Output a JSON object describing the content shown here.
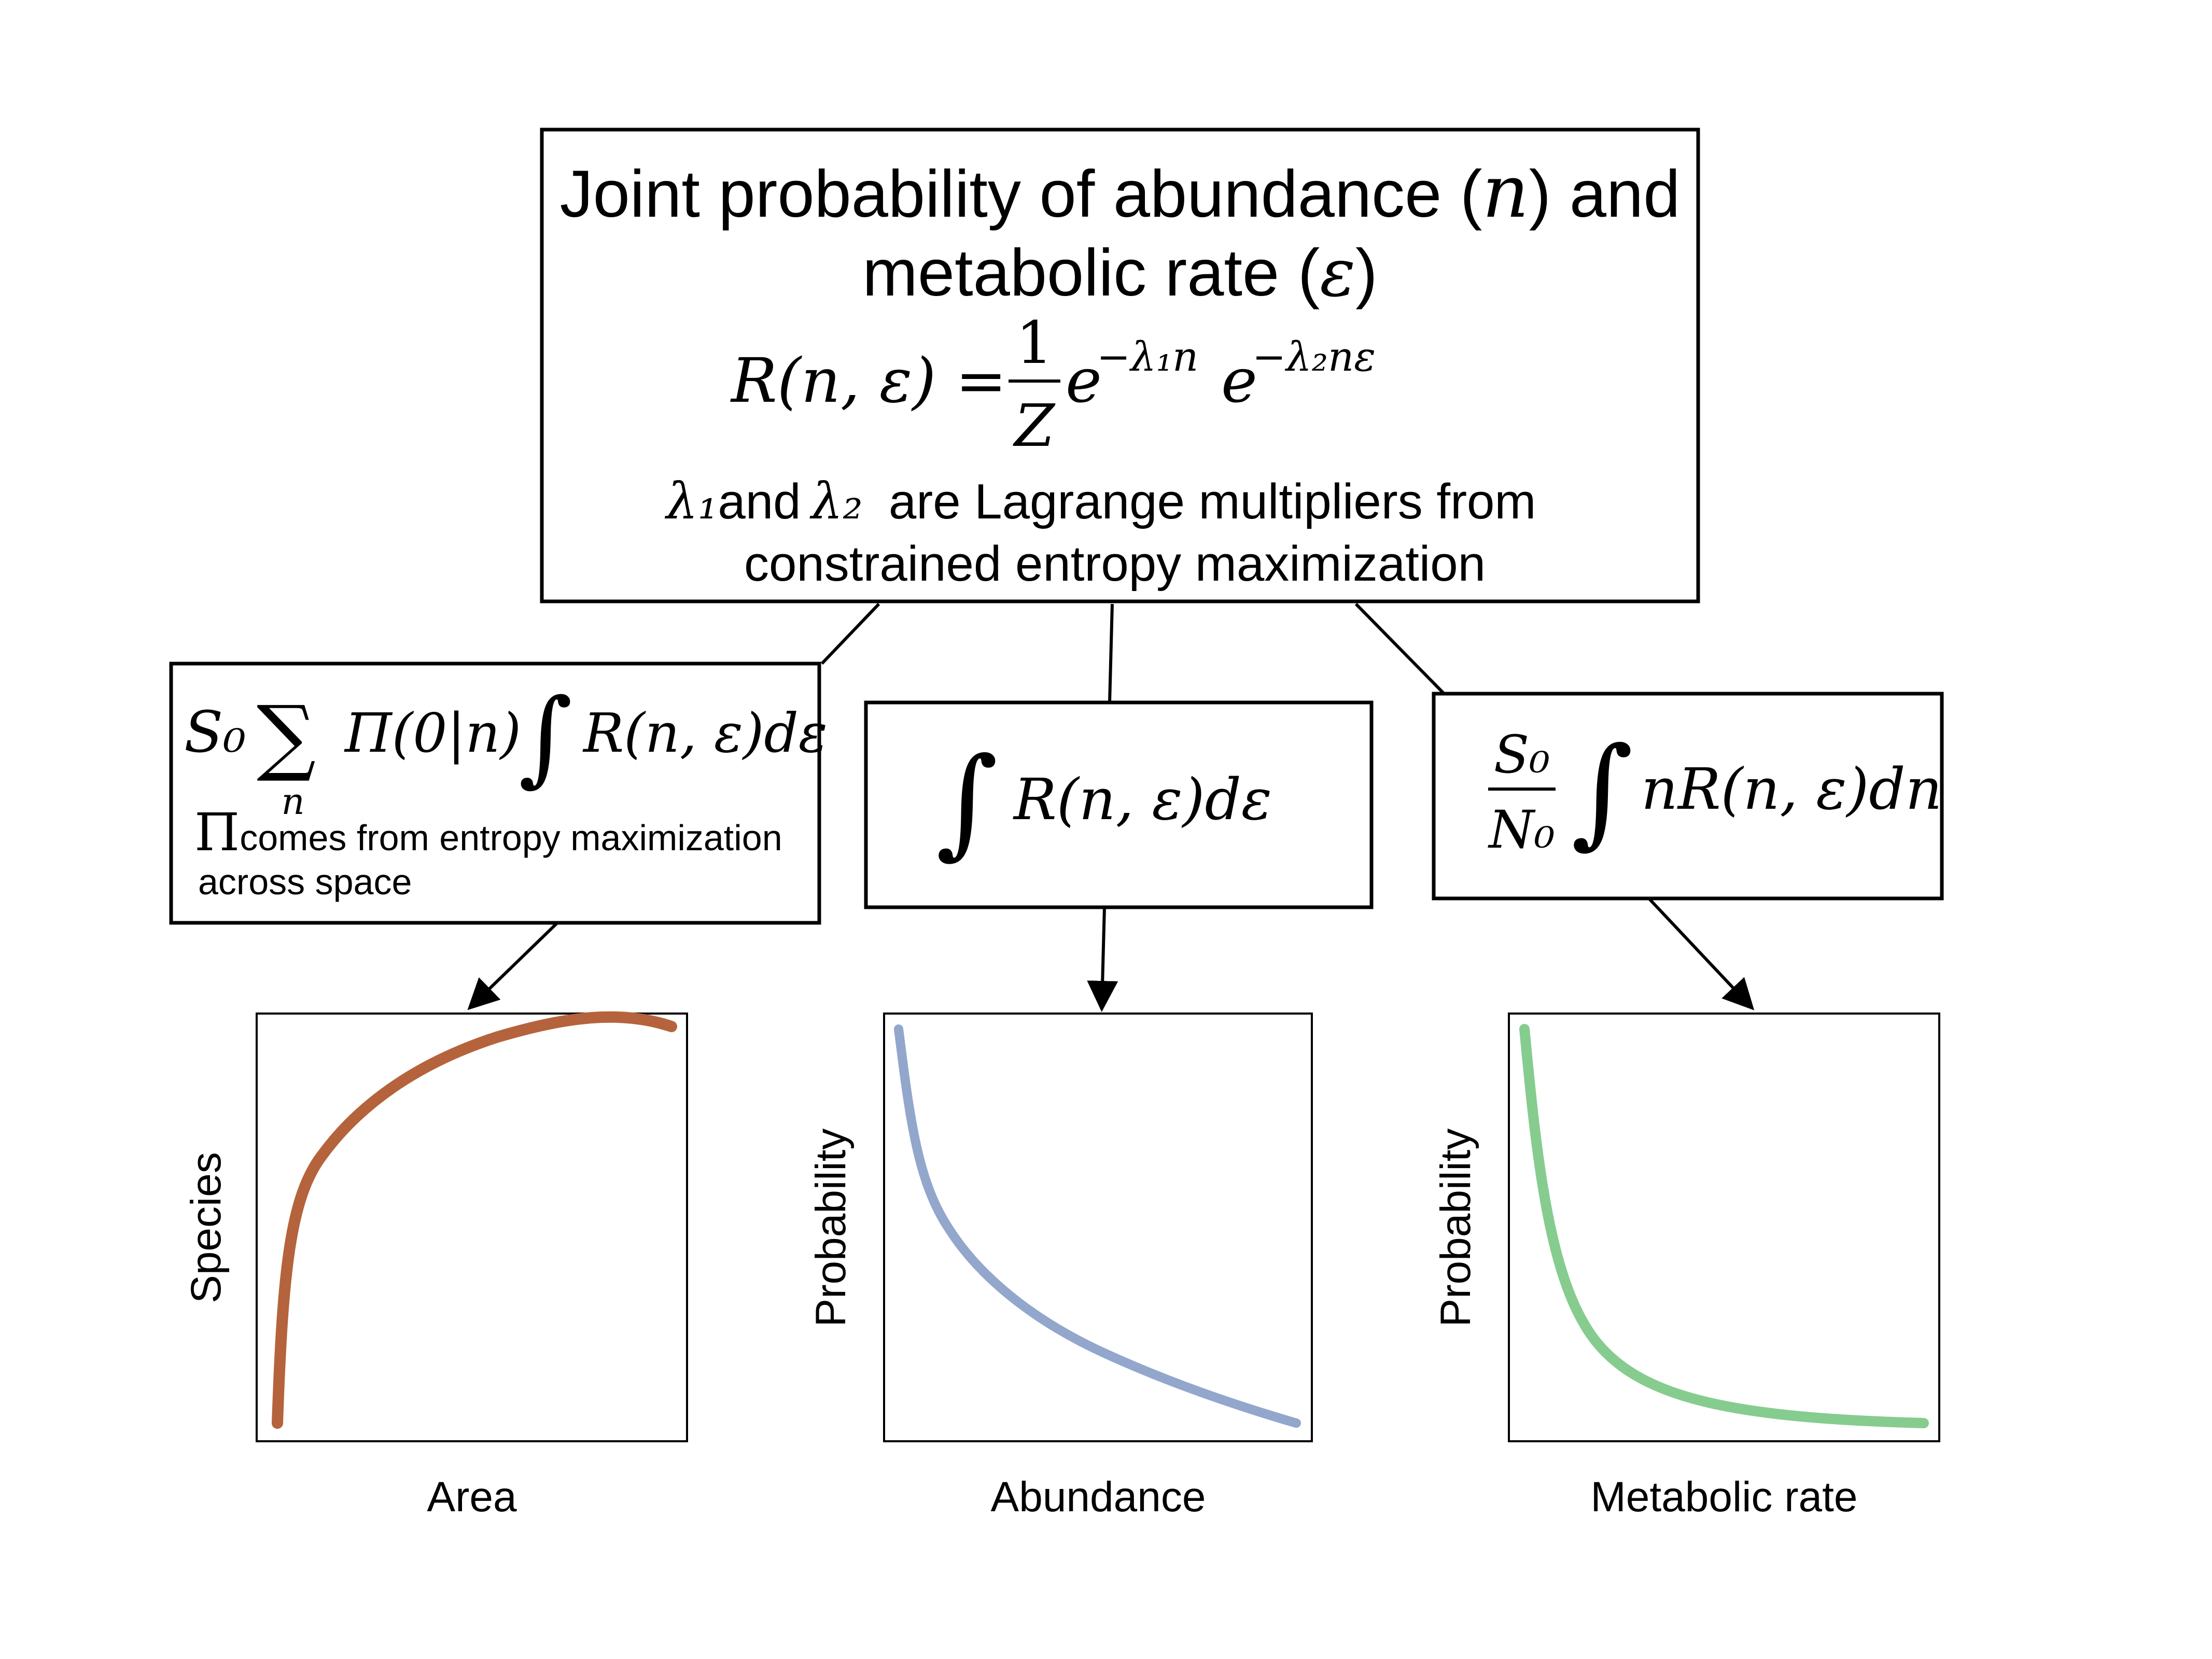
{
  "top_box": {
    "title_line1_pre": "Joint probability of abundance (",
    "title_n": "n",
    "title_line1_post": ") and",
    "title_line2_pre": "metabolic rate (",
    "title_eps": "ε",
    "title_line2_post": ")",
    "formula_lhs": "R(n, ε) =",
    "formula_num": "1",
    "formula_den": "Z",
    "formula_e1": "e",
    "formula_exp1": "−λ₁n",
    "formula_e2": "e",
    "formula_exp2": "−λ₂nε",
    "note_lambda1": "λ₁",
    "note_and": "and",
    "note_lambda2": "λ₂",
    "note_rest": "are Lagrange multipliers from",
    "note_line2": "constrained entropy maximization"
  },
  "left_box": {
    "formula_s0": "S₀",
    "formula_sigma": "∑",
    "formula_sigma_sub": "n",
    "formula_pi": "Π(0|n)",
    "formula_int": "∫",
    "formula_r": "R(n, ε)dε",
    "note_pi": "Π",
    "note_line1": "comes from entropy maximization",
    "note_line2": "across space"
  },
  "mid_box": {
    "formula_int": "∫",
    "formula_r": "R(n, ε)dε"
  },
  "right_box": {
    "formula_num": "S₀",
    "formula_den": "N₀",
    "formula_int": "∫",
    "formula_r": "nR(n, ε)dn"
  },
  "plots": {
    "species_area": {
      "xlabel": "Area",
      "ylabel": "Species",
      "color": "#b5633c"
    },
    "abundance": {
      "xlabel": "Abundance",
      "ylabel": "Probability",
      "color": "#93a6cc"
    },
    "metabolic": {
      "xlabel": "Metabolic rate",
      "ylabel": "Probability",
      "color": "#86cc8f"
    }
  }
}
